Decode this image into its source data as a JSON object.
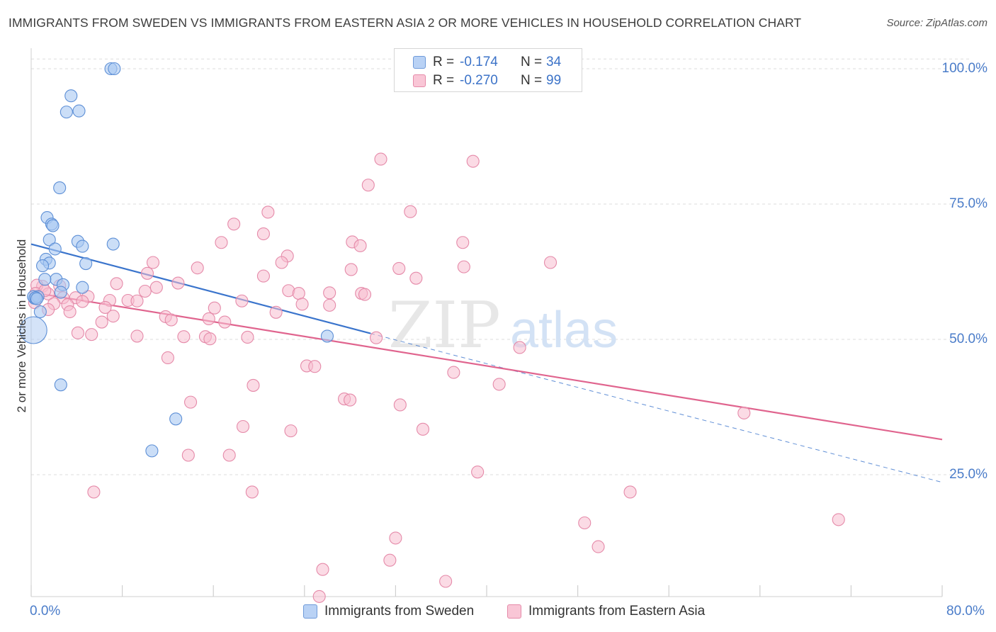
{
  "title": "IMMIGRANTS FROM SWEDEN VS IMMIGRANTS FROM EASTERN ASIA 2 OR MORE VEHICLES IN HOUSEHOLD CORRELATION CHART",
  "source": "Source: ZipAtlas.com",
  "watermark": {
    "zip": "ZIP",
    "atlas": "atlas"
  },
  "colors": {
    "sweden_fill": "#a9c8f2",
    "sweden_stroke": "#5d8fd6",
    "sweden_line": "#3a74cc",
    "asia_fill": "#f7bdd0",
    "asia_stroke": "#e58aa9",
    "asia_line": "#e0648e",
    "axis_label": "#4a7cc9",
    "grid": "#dddddd"
  },
  "legend": {
    "rows": [
      {
        "r_label": "R =",
        "r_value": "-0.174",
        "n_label": "N =",
        "n_value": "34"
      },
      {
        "r_label": "R =",
        "r_value": "-0.270",
        "n_label": "N =",
        "n_value": "99"
      }
    ]
  },
  "bottom_legend": [
    "Immigrants from Sweden",
    "Immigrants from Eastern Asia"
  ],
  "chart_data": {
    "type": "scatter",
    "title": "IMMIGRANTS FROM SWEDEN VS IMMIGRANTS FROM EASTERN ASIA 2 OR MORE VEHICLES IN HOUSEHOLD CORRELATION CHART",
    "xlabel": "",
    "ylabel": "2 or more Vehicles in Household",
    "xlim": [
      0,
      80
    ],
    "ylim": [
      0,
      102
    ],
    "x_tick_labels": [
      "0.0%",
      "80.0%"
    ],
    "y_ticks": [
      25,
      50,
      75,
      100
    ],
    "y_tick_labels": [
      "25.0%",
      "50.0%",
      "75.0%",
      "100.0%"
    ],
    "grid": true,
    "legend_placement": "top-center",
    "series": [
      {
        "name": "Immigrants from Sweden",
        "R": -0.174,
        "N": 34,
        "trend": {
          "x": [
            0,
            29.8
          ],
          "y": [
            67.6,
            51.1
          ]
        },
        "trend_extension": {
          "x": [
            29.8,
            80
          ],
          "y": [
            51.1,
            23.6
          ]
        },
        "points": [
          [
            7.0,
            100.0
          ],
          [
            7.3,
            100.0
          ],
          [
            3.5,
            95.0
          ],
          [
            3.1,
            92.0
          ],
          [
            4.2,
            92.2
          ],
          [
            2.5,
            78.0
          ],
          [
            1.4,
            72.5
          ],
          [
            1.8,
            71.3
          ],
          [
            1.9,
            71.0
          ],
          [
            1.6,
            68.4
          ],
          [
            4.1,
            68.1
          ],
          [
            7.2,
            67.6
          ],
          [
            2.1,
            66.7
          ],
          [
            4.5,
            67.2
          ],
          [
            1.3,
            64.8
          ],
          [
            1.6,
            64.1
          ],
          [
            1.0,
            63.6
          ],
          [
            4.8,
            64.0
          ],
          [
            2.2,
            61.1
          ],
          [
            1.2,
            61.1
          ],
          [
            2.8,
            60.1
          ],
          [
            4.5,
            59.6
          ],
          [
            2.6,
            58.7
          ],
          [
            0.3,
            57.6
          ],
          [
            0.2,
            57.9
          ],
          [
            0.6,
            57.9
          ],
          [
            0.4,
            57.7
          ],
          [
            0.8,
            55.1
          ],
          [
            0.2,
            51.7
          ],
          [
            26.0,
            50.6
          ],
          [
            2.6,
            41.6
          ],
          [
            12.7,
            35.3
          ],
          [
            10.6,
            29.4
          ],
          [
            0.5,
            57.5
          ]
        ]
      },
      {
        "name": "Immigrants from Eastern Asia",
        "R": -0.27,
        "N": 99,
        "trend": {
          "x": [
            0,
            80
          ],
          "y": [
            58.7,
            31.5
          ]
        },
        "points": [
          [
            43.4,
            100.3
          ],
          [
            30.7,
            83.3
          ],
          [
            38.8,
            82.9
          ],
          [
            29.6,
            78.5
          ],
          [
            20.8,
            73.5
          ],
          [
            33.3,
            73.6
          ],
          [
            17.8,
            71.3
          ],
          [
            20.4,
            69.5
          ],
          [
            16.7,
            67.9
          ],
          [
            37.9,
            67.9
          ],
          [
            28.2,
            68.0
          ],
          [
            28.9,
            67.3
          ],
          [
            22.5,
            65.4
          ],
          [
            22.0,
            64.2
          ],
          [
            10.7,
            64.2
          ],
          [
            45.6,
            64.2
          ],
          [
            14.6,
            63.2
          ],
          [
            32.3,
            63.1
          ],
          [
            38.0,
            63.4
          ],
          [
            28.1,
            62.9
          ],
          [
            10.2,
            62.2
          ],
          [
            20.4,
            61.7
          ],
          [
            33.8,
            61.3
          ],
          [
            12.9,
            60.4
          ],
          [
            7.5,
            60.3
          ],
          [
            11.0,
            59.6
          ],
          [
            1.0,
            59.8
          ],
          [
            2.5,
            59.9
          ],
          [
            0.5,
            60.0
          ],
          [
            10.0,
            58.9
          ],
          [
            22.6,
            59.0
          ],
          [
            26.2,
            58.6
          ],
          [
            23.5,
            58.5
          ],
          [
            29.0,
            58.5
          ],
          [
            29.3,
            58.3
          ],
          [
            0.4,
            58.5
          ],
          [
            1.5,
            58.4
          ],
          [
            2.8,
            57.7
          ],
          [
            3.9,
            57.7
          ],
          [
            5.0,
            57.9
          ],
          [
            6.9,
            57.2
          ],
          [
            8.5,
            57.2
          ],
          [
            9.3,
            57.1
          ],
          [
            18.5,
            57.1
          ],
          [
            4.5,
            57.0
          ],
          [
            3.2,
            56.4
          ],
          [
            2.0,
            56.6
          ],
          [
            6.5,
            55.9
          ],
          [
            16.1,
            55.8
          ],
          [
            26.2,
            56.3
          ],
          [
            1.5,
            55.5
          ],
          [
            3.4,
            55.1
          ],
          [
            21.5,
            55.0
          ],
          [
            23.8,
            56.5
          ],
          [
            11.8,
            54.2
          ],
          [
            7.2,
            54.3
          ],
          [
            15.6,
            53.8
          ],
          [
            12.3,
            53.6
          ],
          [
            17.0,
            53.2
          ],
          [
            6.2,
            53.2
          ],
          [
            4.1,
            51.2
          ],
          [
            5.3,
            50.9
          ],
          [
            9.3,
            50.6
          ],
          [
            13.4,
            50.5
          ],
          [
            15.3,
            50.5
          ],
          [
            15.7,
            50.1
          ],
          [
            19.0,
            50.4
          ],
          [
            30.3,
            50.3
          ],
          [
            42.9,
            48.5
          ],
          [
            12.0,
            46.6
          ],
          [
            24.2,
            45.1
          ],
          [
            24.9,
            45.0
          ],
          [
            37.1,
            43.9
          ],
          [
            41.1,
            41.7
          ],
          [
            19.5,
            41.5
          ],
          [
            27.5,
            39.0
          ],
          [
            28.0,
            38.8
          ],
          [
            32.4,
            37.9
          ],
          [
            14.0,
            38.4
          ],
          [
            62.6,
            36.4
          ],
          [
            18.6,
            33.9
          ],
          [
            22.8,
            33.1
          ],
          [
            34.4,
            33.4
          ],
          [
            13.8,
            28.6
          ],
          [
            17.4,
            28.6
          ],
          [
            39.2,
            25.5
          ],
          [
            5.5,
            21.8
          ],
          [
            19.4,
            21.8
          ],
          [
            52.6,
            21.8
          ],
          [
            70.9,
            16.7
          ],
          [
            48.6,
            16.1
          ],
          [
            32.0,
            13.3
          ],
          [
            49.8,
            11.7
          ],
          [
            31.5,
            9.2
          ],
          [
            25.6,
            7.5
          ],
          [
            36.4,
            5.3
          ],
          [
            25.3,
            2.5
          ],
          [
            0.3,
            56.8
          ],
          [
            1.2,
            59.0
          ]
        ]
      }
    ]
  }
}
